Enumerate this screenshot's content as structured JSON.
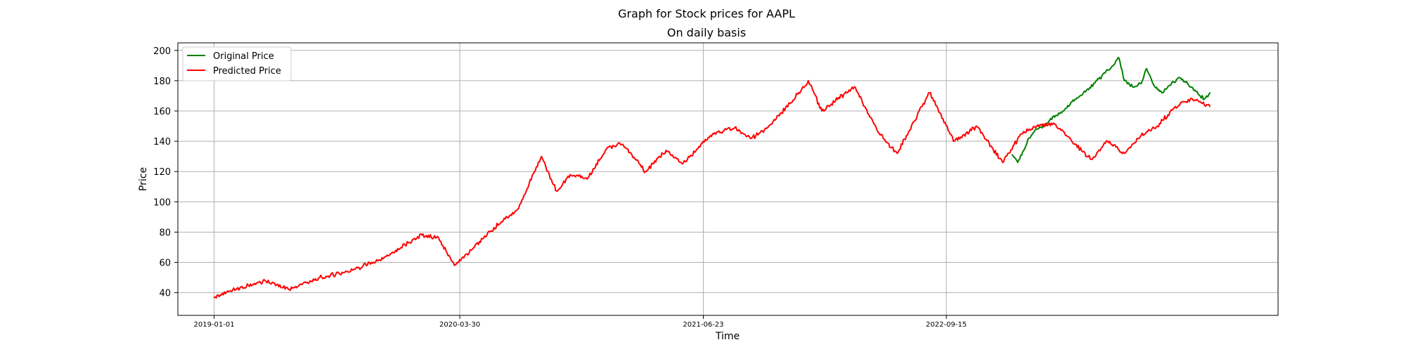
{
  "chart_data": {
    "type": "line",
    "suptitle": "Graph for Stock prices for AAPL",
    "title": "On daily basis",
    "xlabel": "Time",
    "ylabel": "Price",
    "x_ticks": [
      "2019-01-01",
      "2020-03-30",
      "2021-06-23",
      "2022-09-15"
    ],
    "y_ticks": [
      40,
      60,
      80,
      100,
      120,
      140,
      160,
      180,
      200
    ],
    "ylim": [
      25,
      205
    ],
    "xlim": [
      "2018-10-26",
      "2024-05-20"
    ],
    "grid": true,
    "legend_position": "top-left",
    "series": [
      {
        "name": "Original Price",
        "color": "#008000",
        "points": [
          [
            "2023-01-15",
            131
          ],
          [
            "2023-01-25",
            126
          ],
          [
            "2023-02-05",
            134
          ],
          [
            "2023-02-15",
            142
          ],
          [
            "2023-03-01",
            148
          ],
          [
            "2023-03-15",
            150
          ],
          [
            "2023-03-25",
            154
          ],
          [
            "2023-04-05",
            157
          ],
          [
            "2023-04-20",
            160
          ],
          [
            "2023-05-05",
            166
          ],
          [
            "2023-05-20",
            170
          ],
          [
            "2023-06-05",
            174
          ],
          [
            "2023-06-20",
            180
          ],
          [
            "2023-07-05",
            185
          ],
          [
            "2023-07-20",
            190
          ],
          [
            "2023-07-31",
            195
          ],
          [
            "2023-08-10",
            180
          ],
          [
            "2023-08-25",
            176
          ],
          [
            "2023-09-10",
            178
          ],
          [
            "2023-09-20",
            188
          ],
          [
            "2023-10-05",
            176
          ],
          [
            "2023-10-20",
            172
          ],
          [
            "2023-11-05",
            178
          ],
          [
            "2023-11-20",
            182
          ],
          [
            "2023-12-05",
            178
          ],
          [
            "2023-12-20",
            173
          ],
          [
            "2024-01-05",
            168
          ],
          [
            "2024-01-15",
            172
          ]
        ]
      },
      {
        "name": "Predicted Price",
        "color": "#ff0000",
        "points": [
          [
            "2019-01-01",
            37
          ],
          [
            "2019-02-10",
            42
          ],
          [
            "2019-04-05",
            48
          ],
          [
            "2019-05-20",
            42
          ],
          [
            "2019-07-15",
            50
          ],
          [
            "2019-09-10",
            54
          ],
          [
            "2019-11-15",
            64
          ],
          [
            "2020-01-20",
            78
          ],
          [
            "2020-02-20",
            76
          ],
          [
            "2020-03-20",
            58
          ],
          [
            "2020-04-20",
            68
          ],
          [
            "2020-06-01",
            83
          ],
          [
            "2020-07-15",
            95
          ],
          [
            "2020-08-28",
            130
          ],
          [
            "2020-09-25",
            107
          ],
          [
            "2020-10-20",
            118
          ],
          [
            "2020-11-20",
            115
          ],
          [
            "2020-12-28",
            136
          ],
          [
            "2021-01-25",
            138
          ],
          [
            "2021-03-08",
            120
          ],
          [
            "2021-04-15",
            134
          ],
          [
            "2021-05-15",
            125
          ],
          [
            "2021-07-10",
            145
          ],
          [
            "2021-08-20",
            149
          ],
          [
            "2021-09-20",
            142
          ],
          [
            "2021-10-20",
            149
          ],
          [
            "2021-11-30",
            165
          ],
          [
            "2022-01-03",
            180
          ],
          [
            "2022-01-28",
            160
          ],
          [
            "2022-03-29",
            176
          ],
          [
            "2022-05-12",
            146
          ],
          [
            "2022-06-16",
            132
          ],
          [
            "2022-08-15",
            172
          ],
          [
            "2022-09-30",
            140
          ],
          [
            "2022-11-10",
            150
          ],
          [
            "2022-12-28",
            126
          ],
          [
            "2023-02-01",
            145
          ],
          [
            "2023-03-01",
            150
          ],
          [
            "2023-04-01",
            152
          ],
          [
            "2023-05-05",
            140
          ],
          [
            "2023-06-10",
            128
          ],
          [
            "2023-07-10",
            140
          ],
          [
            "2023-08-10",
            132
          ],
          [
            "2023-09-10",
            144
          ],
          [
            "2023-10-10",
            150
          ],
          [
            "2023-11-10",
            162
          ],
          [
            "2023-12-10",
            168
          ],
          [
            "2024-01-15",
            163
          ]
        ]
      }
    ]
  }
}
